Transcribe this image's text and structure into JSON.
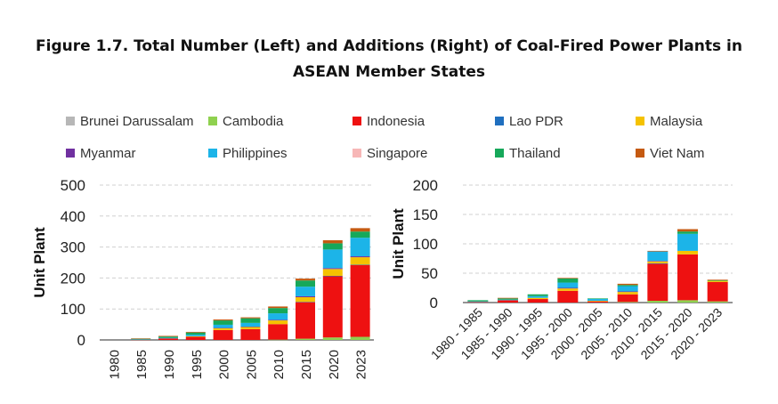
{
  "title_line1": "Figure 1.7. Total Number (Left) and Additions (Right) of Coal-Fired Power Plants in",
  "title_line2": "ASEAN Member States",
  "colors": {
    "Brunei Darussalam": "#b7b7b7",
    "Cambodia": "#8fd14f",
    "Indonesia": "#ee1111",
    "Lao PDR": "#1f6fbf",
    "Malaysia": "#f5c200",
    "Myanmar": "#7030a0",
    "Philippines": "#1cb4e8",
    "Singapore": "#f7b7b7",
    "Thailand": "#16a85a",
    "Viet Nam": "#c55a11"
  },
  "legend": [
    "Brunei Darussalam",
    "Cambodia",
    "Indonesia",
    "Lao PDR",
    "Malaysia",
    "Myanmar",
    "Philippines",
    "Singapore",
    "Thailand",
    "Viet Nam"
  ],
  "chart_data": [
    {
      "type": "bar",
      "stacked": true,
      "ylabel": "Unit Plant",
      "ylim": [
        0,
        500
      ],
      "yticks": [
        0,
        100,
        200,
        300,
        400,
        500
      ],
      "grid": true,
      "categories": [
        "1980",
        "1985",
        "1990",
        "1995",
        "2000",
        "2005",
        "2010",
        "2015",
        "2020",
        "2023"
      ],
      "series": [
        {
          "name": "Brunei Darussalam",
          "values": [
            0,
            0,
            0,
            0,
            0,
            0,
            0,
            0,
            0,
            0
          ]
        },
        {
          "name": "Cambodia",
          "values": [
            0,
            0,
            0,
            0,
            0,
            0,
            1,
            4,
            8,
            10
          ]
        },
        {
          "name": "Indonesia",
          "values": [
            0,
            1,
            5,
            10,
            32,
            35,
            50,
            118,
            198,
            232
          ]
        },
        {
          "name": "Lao PDR",
          "values": [
            0,
            0,
            0,
            0,
            0,
            0,
            0,
            1,
            1,
            1
          ]
        },
        {
          "name": "Malaysia",
          "values": [
            0,
            0,
            0,
            2,
            6,
            7,
            12,
            15,
            22,
            24
          ]
        },
        {
          "name": "Myanmar",
          "values": [
            0,
            0,
            0,
            0,
            1,
            1,
            2,
            3,
            3,
            3
          ]
        },
        {
          "name": "Philippines",
          "values": [
            0,
            1,
            2,
            5,
            10,
            12,
            21,
            31,
            60,
            60
          ]
        },
        {
          "name": "Singapore",
          "values": [
            0,
            0,
            0,
            0,
            0,
            0,
            0,
            0,
            0,
            0
          ]
        },
        {
          "name": "Thailand",
          "values": [
            0,
            2,
            4,
            7,
            14,
            15,
            17,
            20,
            20,
            20
          ]
        },
        {
          "name": "Viet Nam",
          "values": [
            0,
            1,
            2,
            2,
            3,
            3,
            5,
            6,
            10,
            11
          ]
        }
      ]
    },
    {
      "type": "bar",
      "stacked": true,
      "ylabel": "Unit Plant",
      "ylim": [
        0,
        200
      ],
      "yticks": [
        0,
        50,
        100,
        150,
        200
      ],
      "grid": true,
      "categories": [
        "1980 - 1985",
        "1985 - 1990",
        "1990 - 1995",
        "1995 - 2000",
        "2000 - 2005",
        "2005 - 2010",
        "2010 - 2015",
        "2015 - 2020",
        "2020 - 2023"
      ],
      "series": [
        {
          "name": "Brunei Darussalam",
          "values": [
            0,
            0,
            0,
            0,
            0,
            0,
            0,
            0,
            0
          ]
        },
        {
          "name": "Cambodia",
          "values": [
            0,
            0,
            0,
            0,
            0,
            1,
            3,
            4,
            2
          ]
        },
        {
          "name": "Indonesia",
          "values": [
            1,
            4,
            6,
            20,
            2,
            13,
            63,
            78,
            33
          ]
        },
        {
          "name": "Lao PDR",
          "values": [
            0,
            0,
            0,
            0,
            0,
            0,
            1,
            0,
            0
          ]
        },
        {
          "name": "Malaysia",
          "values": [
            0,
            0,
            2,
            4,
            1,
            4,
            3,
            6,
            2
          ]
        },
        {
          "name": "Myanmar",
          "values": [
            0,
            0,
            0,
            1,
            0,
            1,
            1,
            0,
            0
          ]
        },
        {
          "name": "Philippines",
          "values": [
            1,
            1,
            3,
            9,
            3,
            9,
            16,
            29,
            0
          ]
        },
        {
          "name": "Singapore",
          "values": [
            0,
            0,
            0,
            0,
            0,
            0,
            0,
            0,
            0
          ]
        },
        {
          "name": "Thailand",
          "values": [
            2,
            2,
            3,
            7,
            1,
            2,
            0,
            4,
            1
          ]
        },
        {
          "name": "Viet Nam",
          "values": [
            0,
            1,
            0,
            1,
            0,
            2,
            1,
            4,
            1
          ]
        }
      ]
    }
  ]
}
